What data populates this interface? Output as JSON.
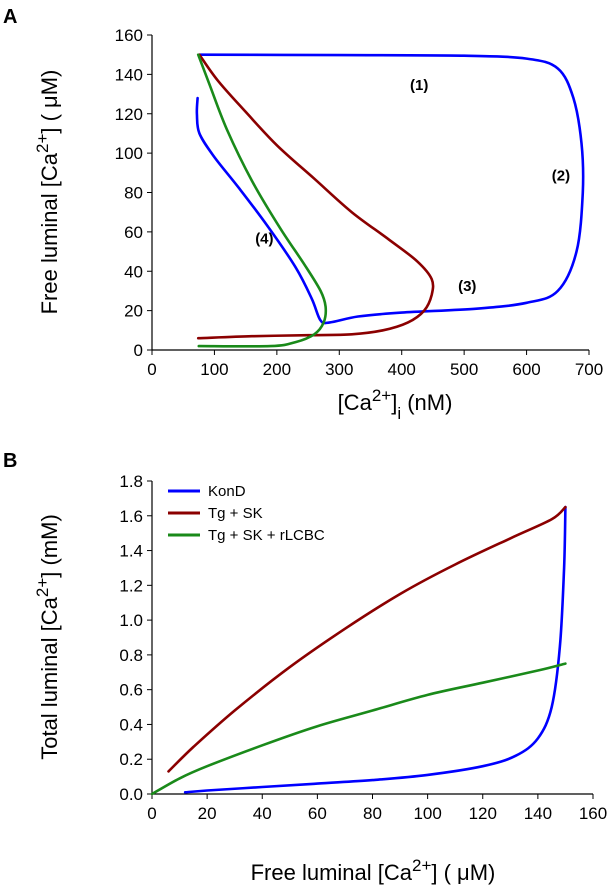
{
  "chart_data": [
    {
      "panel": "A",
      "type": "line",
      "xlabel": {
        "base": "[Ca",
        "sup": "2+",
        "mid": "]",
        "sub": "i",
        "tail": " (nM)"
      },
      "ylabel": {
        "base": "Free luminal [Ca",
        "sup": "2+",
        "tail": "] ( μM)"
      },
      "xlim": [
        0,
        700
      ],
      "ylim": [
        0,
        160
      ],
      "xticks": [
        0,
        100,
        200,
        300,
        400,
        500,
        600,
        700
      ],
      "yticks": [
        0,
        20,
        40,
        60,
        80,
        100,
        120,
        140,
        160
      ],
      "grid": false,
      "annotations": [
        {
          "text": "(1)",
          "x": 428,
          "y": 132
        },
        {
          "text": "(2)",
          "x": 655,
          "y": 86
        },
        {
          "text": "(3)",
          "x": 505,
          "y": 30
        },
        {
          "text": "(4)",
          "x": 180,
          "y": 54
        }
      ],
      "series": [
        {
          "color": "#0000ff",
          "points": [
            [
              73,
              128
            ],
            [
              72,
              120
            ],
            [
              76,
              110
            ],
            [
              100,
              98
            ],
            [
              140,
              82
            ],
            [
              185,
              63
            ],
            [
              230,
              42
            ],
            [
              256,
              26
            ],
            [
              270,
              15
            ],
            [
              285,
              14
            ],
            [
              330,
              17
            ],
            [
              400,
              19
            ],
            [
              520,
              21
            ],
            [
              600,
              24
            ],
            [
              650,
              30
            ],
            [
              680,
              50
            ],
            [
              690,
              80
            ],
            [
              688,
              105
            ],
            [
              675,
              128
            ],
            [
              650,
              143
            ],
            [
              600,
              148
            ],
            [
              500,
              149.5
            ],
            [
              300,
              149.8
            ],
            [
              76,
              150
            ]
          ]
        },
        {
          "color": "#8b0000",
          "points": [
            [
              76,
              150
            ],
            [
              105,
              137
            ],
            [
              150,
              121
            ],
            [
              200,
              104
            ],
            [
              260,
              87
            ],
            [
              320,
              70
            ],
            [
              380,
              56
            ],
            [
              425,
              45
            ],
            [
              448,
              36
            ],
            [
              448,
              28
            ],
            [
              436,
              20
            ],
            [
              410,
              14
            ],
            [
              370,
              10
            ],
            [
              320,
              8
            ],
            [
              250,
              7.5
            ],
            [
              160,
              7
            ],
            [
              74,
              6
            ]
          ]
        },
        {
          "color": "#1a8a1a",
          "points": [
            [
              74,
              150
            ],
            [
              92,
              135
            ],
            [
              120,
              112
            ],
            [
              160,
              86
            ],
            [
              205,
              62
            ],
            [
              245,
              43
            ],
            [
              270,
              30
            ],
            [
              278,
              22
            ],
            [
              275,
              14
            ],
            [
              260,
              8
            ],
            [
              230,
              4
            ],
            [
              190,
              2
            ],
            [
              75,
              2
            ]
          ]
        }
      ]
    },
    {
      "panel": "B",
      "type": "line",
      "xlabel": {
        "base": "Free luminal [Ca",
        "sup": "2+",
        "tail": "] ( μM)"
      },
      "ylabel": {
        "base": "Total luminal [Ca",
        "sup": "2+",
        "tail": "] (mM)"
      },
      "xlim": [
        0,
        160
      ],
      "ylim": [
        0,
        1.8
      ],
      "xticks": [
        0,
        20,
        40,
        60,
        80,
        100,
        120,
        140,
        160
      ],
      "yticks": [
        "0.0",
        "0.2",
        "0.4",
        "0.6",
        "0.8",
        "1.0",
        "1.2",
        "1.4",
        "1.6",
        "1.8"
      ],
      "grid": false,
      "legend": "top-left",
      "series": [
        {
          "name": "KonD",
          "color": "#0000ff",
          "points": [
            [
              12,
              0.01
            ],
            [
              20,
              0.02
            ],
            [
              40,
              0.04
            ],
            [
              60,
              0.06
            ],
            [
              80,
              0.08
            ],
            [
              100,
              0.11
            ],
            [
              120,
              0.16
            ],
            [
              132,
              0.22
            ],
            [
              140,
              0.32
            ],
            [
              145,
              0.5
            ],
            [
              148,
              0.85
            ],
            [
              149.5,
              1.3
            ],
            [
              150,
              1.65
            ]
          ]
        },
        {
          "name": "Tg + SK",
          "color": "#8b0000",
          "points": [
            [
              6,
              0.13
            ],
            [
              15,
              0.27
            ],
            [
              30,
              0.48
            ],
            [
              50,
              0.73
            ],
            [
              70,
              0.95
            ],
            [
              90,
              1.15
            ],
            [
              110,
              1.32
            ],
            [
              130,
              1.47
            ],
            [
              145,
              1.58
            ],
            [
              150,
              1.65
            ]
          ]
        },
        {
          "name": "Tg + SK + rLCBC",
          "color": "#1a8a1a",
          "points": [
            [
              0,
              0.0
            ],
            [
              10,
              0.09
            ],
            [
              20,
              0.16
            ],
            [
              40,
              0.28
            ],
            [
              60,
              0.39
            ],
            [
              80,
              0.48
            ],
            [
              100,
              0.57
            ],
            [
              120,
              0.64
            ],
            [
              140,
              0.71
            ],
            [
              150,
              0.75
            ]
          ]
        }
      ]
    }
  ]
}
